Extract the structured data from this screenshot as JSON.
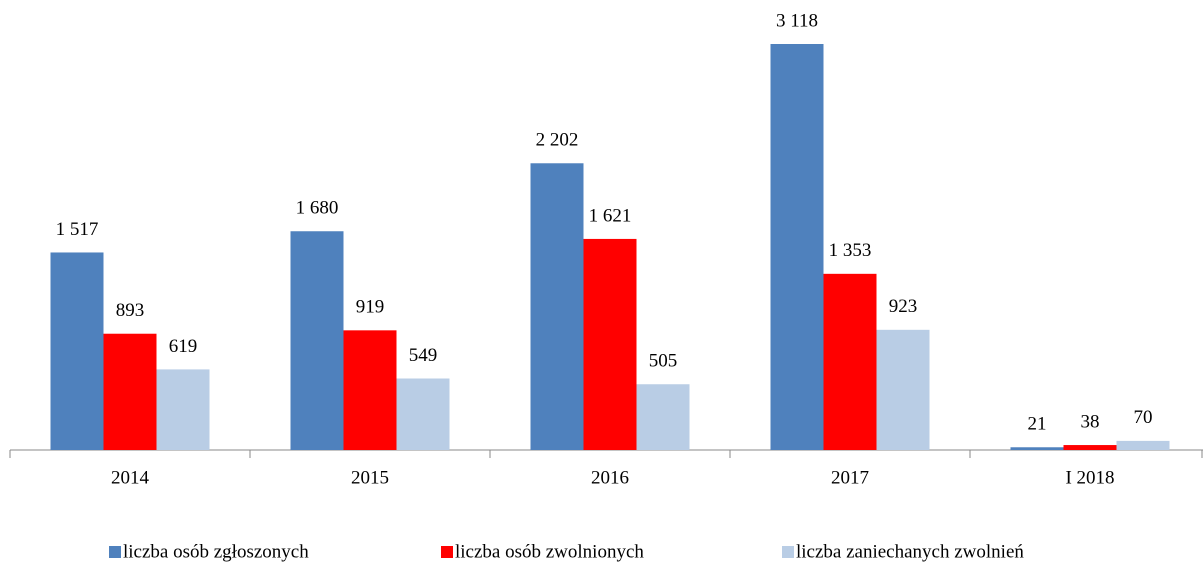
{
  "chart_data": {
    "type": "bar",
    "categories": [
      "2014",
      "2015",
      "2016",
      "2017",
      "I 2018"
    ],
    "series": [
      {
        "name": "liczba osób zgłoszonych",
        "color": "#4f81bd",
        "values": [
          1517,
          1680,
          2202,
          3118,
          21
        ],
        "value_labels": [
          "1 517",
          "1 680",
          "2 202",
          "3 118",
          "21"
        ]
      },
      {
        "name": "liczba osób zwolnionych",
        "color": "#ff0000",
        "values": [
          893,
          919,
          1621,
          1353,
          38
        ],
        "value_labels": [
          "893",
          "919",
          "1 621",
          "1 353",
          "38"
        ]
      },
      {
        "name": "liczba zaniechanych zwolnień",
        "color": "#b9cde5",
        "values": [
          619,
          549,
          505,
          923,
          70
        ],
        "value_labels": [
          "619",
          "549",
          "505",
          "923",
          "70"
        ]
      }
    ],
    "legend": "bottom"
  }
}
